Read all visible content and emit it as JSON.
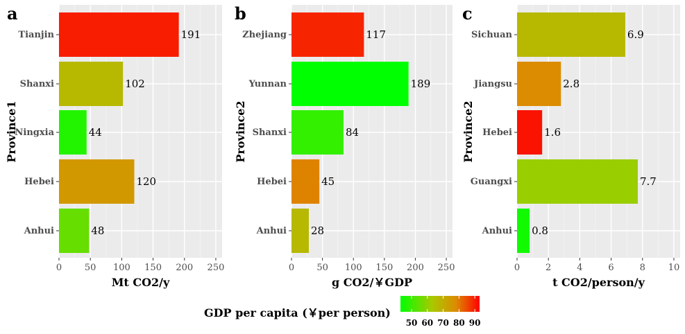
{
  "legend": {
    "title": "GDP per capita (￥per person)",
    "ticks": [
      50,
      60,
      70,
      80,
      90
    ],
    "min": 43,
    "max": 93,
    "color_low": "#00ff00",
    "color_high": "#ff0000"
  },
  "chart_data": [
    {
      "panel": "a",
      "type": "bar",
      "orientation": "horizontal",
      "ylabel": "Province1",
      "xlabel": "Mt CO2/y",
      "xlim": [
        0,
        260
      ],
      "xticks": [
        0,
        50,
        100,
        150,
        200,
        250
      ],
      "categories": [
        "Tianjin",
        "Shanxi",
        "Ningxia",
        "Hebei",
        "Anhui"
      ],
      "values": [
        191,
        102,
        44,
        120,
        48
      ],
      "labels": [
        "191",
        "102",
        "44",
        "120",
        "48"
      ],
      "gdp_per_capita": [
        90,
        67,
        47,
        75,
        55
      ]
    },
    {
      "panel": "b",
      "type": "bar",
      "orientation": "horizontal",
      "ylabel": "Province2",
      "xlabel": "g CO2/￥GDP",
      "xlim": [
        0,
        260
      ],
      "xticks": [
        0,
        50,
        100,
        150,
        200,
        250
      ],
      "categories": [
        "Zhejiang",
        "Yunnan",
        "Shanxi",
        "Hebei",
        "Anhui"
      ],
      "values": [
        117,
        189,
        84,
        45,
        28
      ],
      "labels": [
        "117",
        "189",
        "84",
        "45",
        "28"
      ],
      "gdp_per_capita": [
        89,
        43,
        49,
        79,
        67
      ]
    },
    {
      "panel": "c",
      "type": "bar",
      "orientation": "horizontal",
      "ylabel": "Province2",
      "xlabel": "t CO2/person/y",
      "xlim": [
        0,
        10.4
      ],
      "xticks": [
        0,
        2,
        4,
        6,
        8,
        10
      ],
      "categories": [
        "Sichuan",
        "Jiangsu",
        "Hebei",
        "Guangxi",
        "Anhui"
      ],
      "values": [
        6.9,
        2.8,
        1.6,
        7.7,
        0.8
      ],
      "labels": [
        "6.9",
        "2.8",
        "1.6",
        "7.7",
        "0.8"
      ],
      "gdp_per_capita": [
        67,
        78,
        91,
        61,
        45
      ]
    }
  ]
}
